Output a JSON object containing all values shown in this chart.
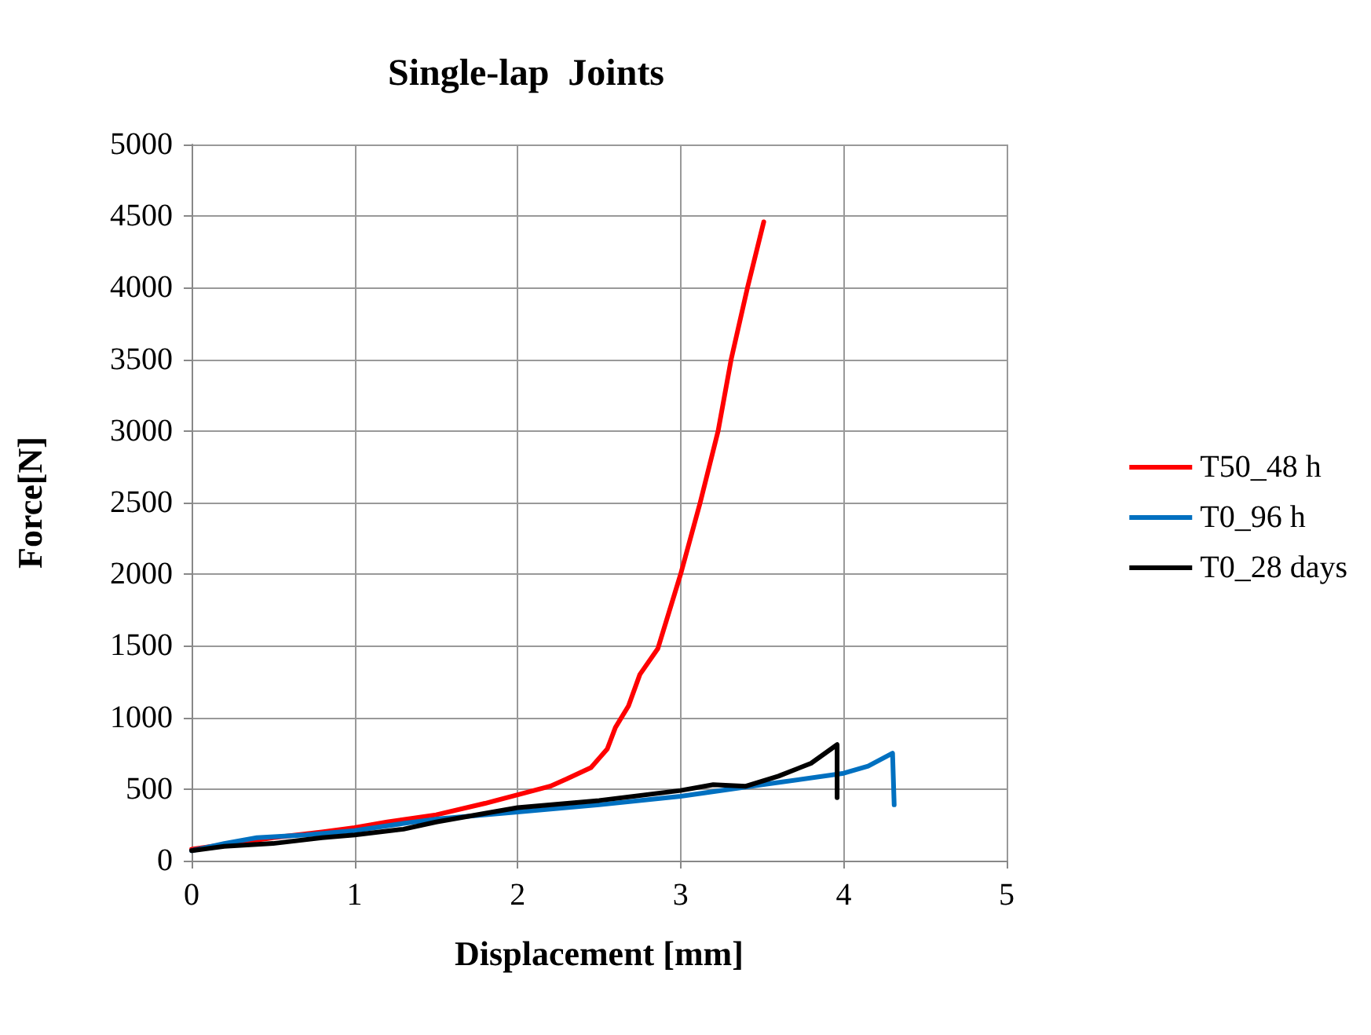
{
  "chart_data": {
    "type": "line",
    "title": "Single-lap  Joints",
    "xlabel": "Displacement [mm]",
    "ylabel": "Force[N]",
    "xlim": [
      0,
      5
    ],
    "xticks": [
      0,
      1,
      2,
      3,
      4,
      5
    ],
    "ylim": [
      0,
      5000
    ],
    "yticks": [
      0,
      500,
      1000,
      1500,
      2000,
      2500,
      3000,
      3500,
      4000,
      4500,
      5000
    ],
    "grid": true,
    "legend": "right",
    "marker": "none",
    "line_style": "solid",
    "series": [
      {
        "name": "T50_48 h",
        "color": "#ff0000",
        "x": [
          0,
          0.5,
          0.8,
          1,
          1.2,
          1.5,
          1.8,
          2,
          2.2,
          2.3,
          2.45,
          2.55,
          2.6,
          2.68,
          2.75,
          2.86,
          3,
          3.12,
          3.23,
          3.31,
          3.41,
          3.51
        ],
        "values": [
          80,
          160,
          200,
          230,
          270,
          320,
          400,
          460,
          520,
          570,
          650,
          780,
          930,
          1080,
          1300,
          1480,
          2000,
          2500,
          3000,
          3500,
          4000,
          4460
        ]
      },
      {
        "name": "T0_96 h",
        "color": "#0070c0",
        "x": [
          0,
          0.2,
          0.4,
          0.7,
          1,
          1.3,
          1.5,
          2,
          2.5,
          3,
          3.5,
          4,
          4.15,
          4.3,
          4.31
        ],
        "values": [
          70,
          120,
          160,
          180,
          210,
          260,
          290,
          340,
          390,
          450,
          530,
          610,
          660,
          750,
          390
        ]
      },
      {
        "name": "T0_28 days",
        "color": "#000000",
        "x": [
          0,
          0.2,
          0.5,
          0.8,
          1,
          1.3,
          1.5,
          1.8,
          2,
          2.5,
          3,
          3.2,
          3.4,
          3.6,
          3.8,
          3.96,
          3.96
        ],
        "values": [
          70,
          100,
          120,
          160,
          180,
          220,
          270,
          330,
          370,
          420,
          490,
          530,
          520,
          590,
          680,
          810,
          440
        ]
      }
    ]
  }
}
